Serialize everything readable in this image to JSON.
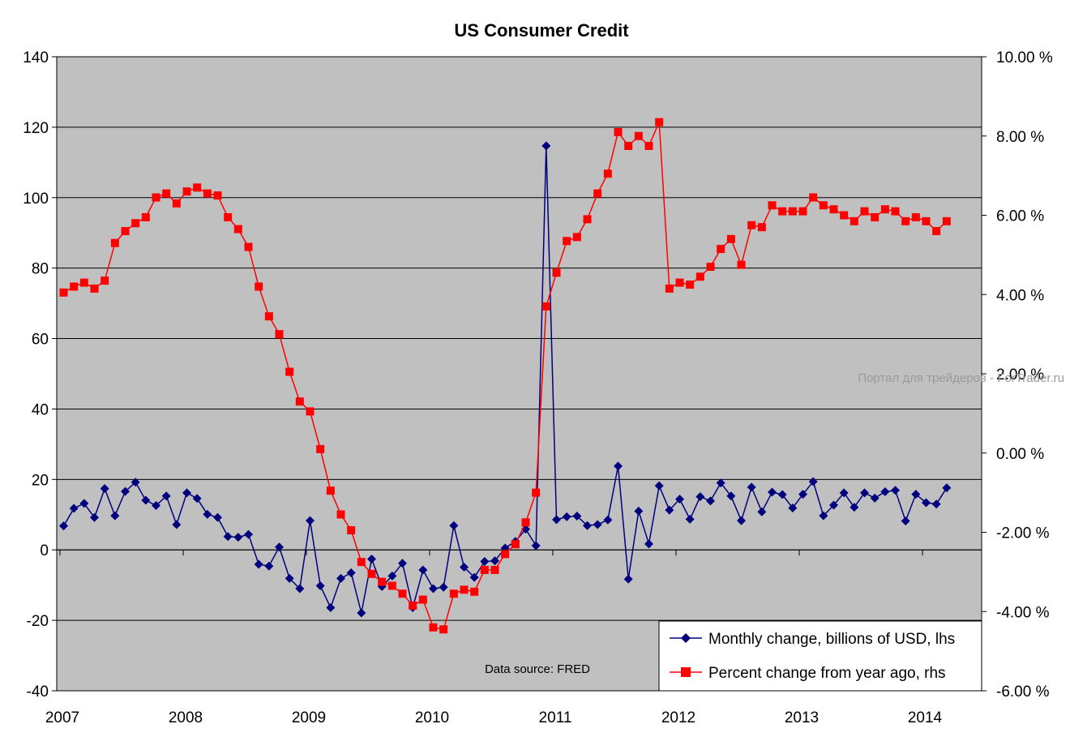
{
  "chart_data": {
    "type": "line",
    "title": "US Consumer Credit",
    "xlabel": "",
    "ylabel_left": "",
    "ylabel_right": "",
    "x_tick_labels": [
      "2007",
      "2008",
      "2009",
      "2010",
      "2011",
      "2012",
      "2013",
      "2014"
    ],
    "left_axis": {
      "ylim": [
        -40,
        140
      ],
      "ticks": [
        140,
        120,
        100,
        80,
        60,
        40,
        20,
        0,
        -20,
        -40
      ],
      "tick_labels": [
        "140",
        "120",
        "100",
        "80",
        "60",
        "40",
        "20",
        "0",
        "-20",
        "-40"
      ]
    },
    "right_axis": {
      "ylim": [
        -6,
        10
      ],
      "ticks": [
        10,
        8,
        6,
        4,
        2,
        0,
        -2,
        -4,
        -6
      ],
      "tick_labels": [
        "10.00 %",
        "8.00 %",
        "6.00 %",
        "4.00 %",
        "2.00 %",
        "0.00 %",
        "-2.00 %",
        "-4.00 %",
        "-6.00 %"
      ]
    },
    "grid": true,
    "legend_position": "bottom-right",
    "start_year": 2007,
    "series": [
      {
        "name": "Monthly change, billions of USD, lhs",
        "axis": "left",
        "color": "#00007f",
        "marker": "diamond",
        "values": [
          6.8,
          11.8,
          13.2,
          9.2,
          17.4,
          9.7,
          16.6,
          19.2,
          14.1,
          12.6,
          15.3,
          7.2,
          16.2,
          14.6,
          10.1,
          9.2,
          3.8,
          3.6,
          4.4,
          -4.1,
          -4.6,
          0.8,
          -8.1,
          -11.0,
          8.3,
          -10.2,
          -16.4,
          -8.1,
          -6.5,
          -17.9,
          -2.6,
          -10.4,
          -7.4,
          -3.8,
          -16.4,
          -5.7,
          -11.0,
          -10.6,
          6.9,
          -4.9,
          -7.8,
          -3.3,
          -3.1,
          0.5,
          2.4,
          5.9,
          1.2,
          114.7,
          8.6,
          9.4,
          9.6,
          6.9,
          7.2,
          8.5,
          23.8,
          -8.3,
          11.0,
          1.7,
          18.2,
          11.3,
          14.4,
          8.7,
          15.1,
          13.9,
          19.0,
          15.3,
          8.3,
          17.8,
          10.8,
          16.4,
          15.7,
          11.9,
          15.8,
          19.4,
          9.7,
          12.7,
          16.2,
          12.1,
          16.2,
          14.7,
          16.5,
          16.9,
          8.2,
          15.8,
          13.4,
          13.0,
          17.6
        ]
      },
      {
        "name": "Percent change from year ago, rhs",
        "axis": "right",
        "color": "#ff0000",
        "marker": "square",
        "values": [
          4.05,
          4.2,
          4.3,
          4.15,
          4.35,
          5.3,
          5.6,
          5.8,
          5.95,
          6.45,
          6.55,
          6.3,
          6.6,
          6.7,
          6.55,
          6.5,
          5.95,
          5.65,
          5.2,
          4.2,
          3.45,
          3.0,
          2.05,
          1.3,
          1.05,
          0.1,
          -0.95,
          -1.55,
          -1.95,
          -2.75,
          -3.05,
          -3.25,
          -3.35,
          -3.55,
          -3.85,
          -3.7,
          -4.4,
          -4.45,
          -3.55,
          -3.45,
          -3.5,
          -2.95,
          -2.95,
          -2.55,
          -2.3,
          -1.75,
          -1.0,
          3.7,
          4.55,
          5.35,
          5.45,
          5.9,
          6.55,
          7.05,
          8.1,
          7.75,
          8.0,
          7.75,
          8.35,
          4.15,
          4.3,
          4.25,
          4.45,
          4.7,
          5.15,
          5.4,
          4.75,
          5.75,
          5.7,
          6.25,
          6.1,
          6.1,
          6.1,
          6.45,
          6.25,
          6.15,
          6.0,
          5.85,
          6.1,
          5.95,
          6.15,
          6.1,
          5.85,
          5.95,
          5.85,
          5.6,
          5.85
        ]
      }
    ],
    "annotations": {
      "source": "Data source: FRED",
      "watermark": "Портал для трейдеров - ForTrader.ru"
    }
  },
  "colors": {
    "plot_background": "#c0c0c0",
    "gridline": "#000000",
    "monthly_series": "#00007f",
    "percent_series": "#ff0000"
  }
}
